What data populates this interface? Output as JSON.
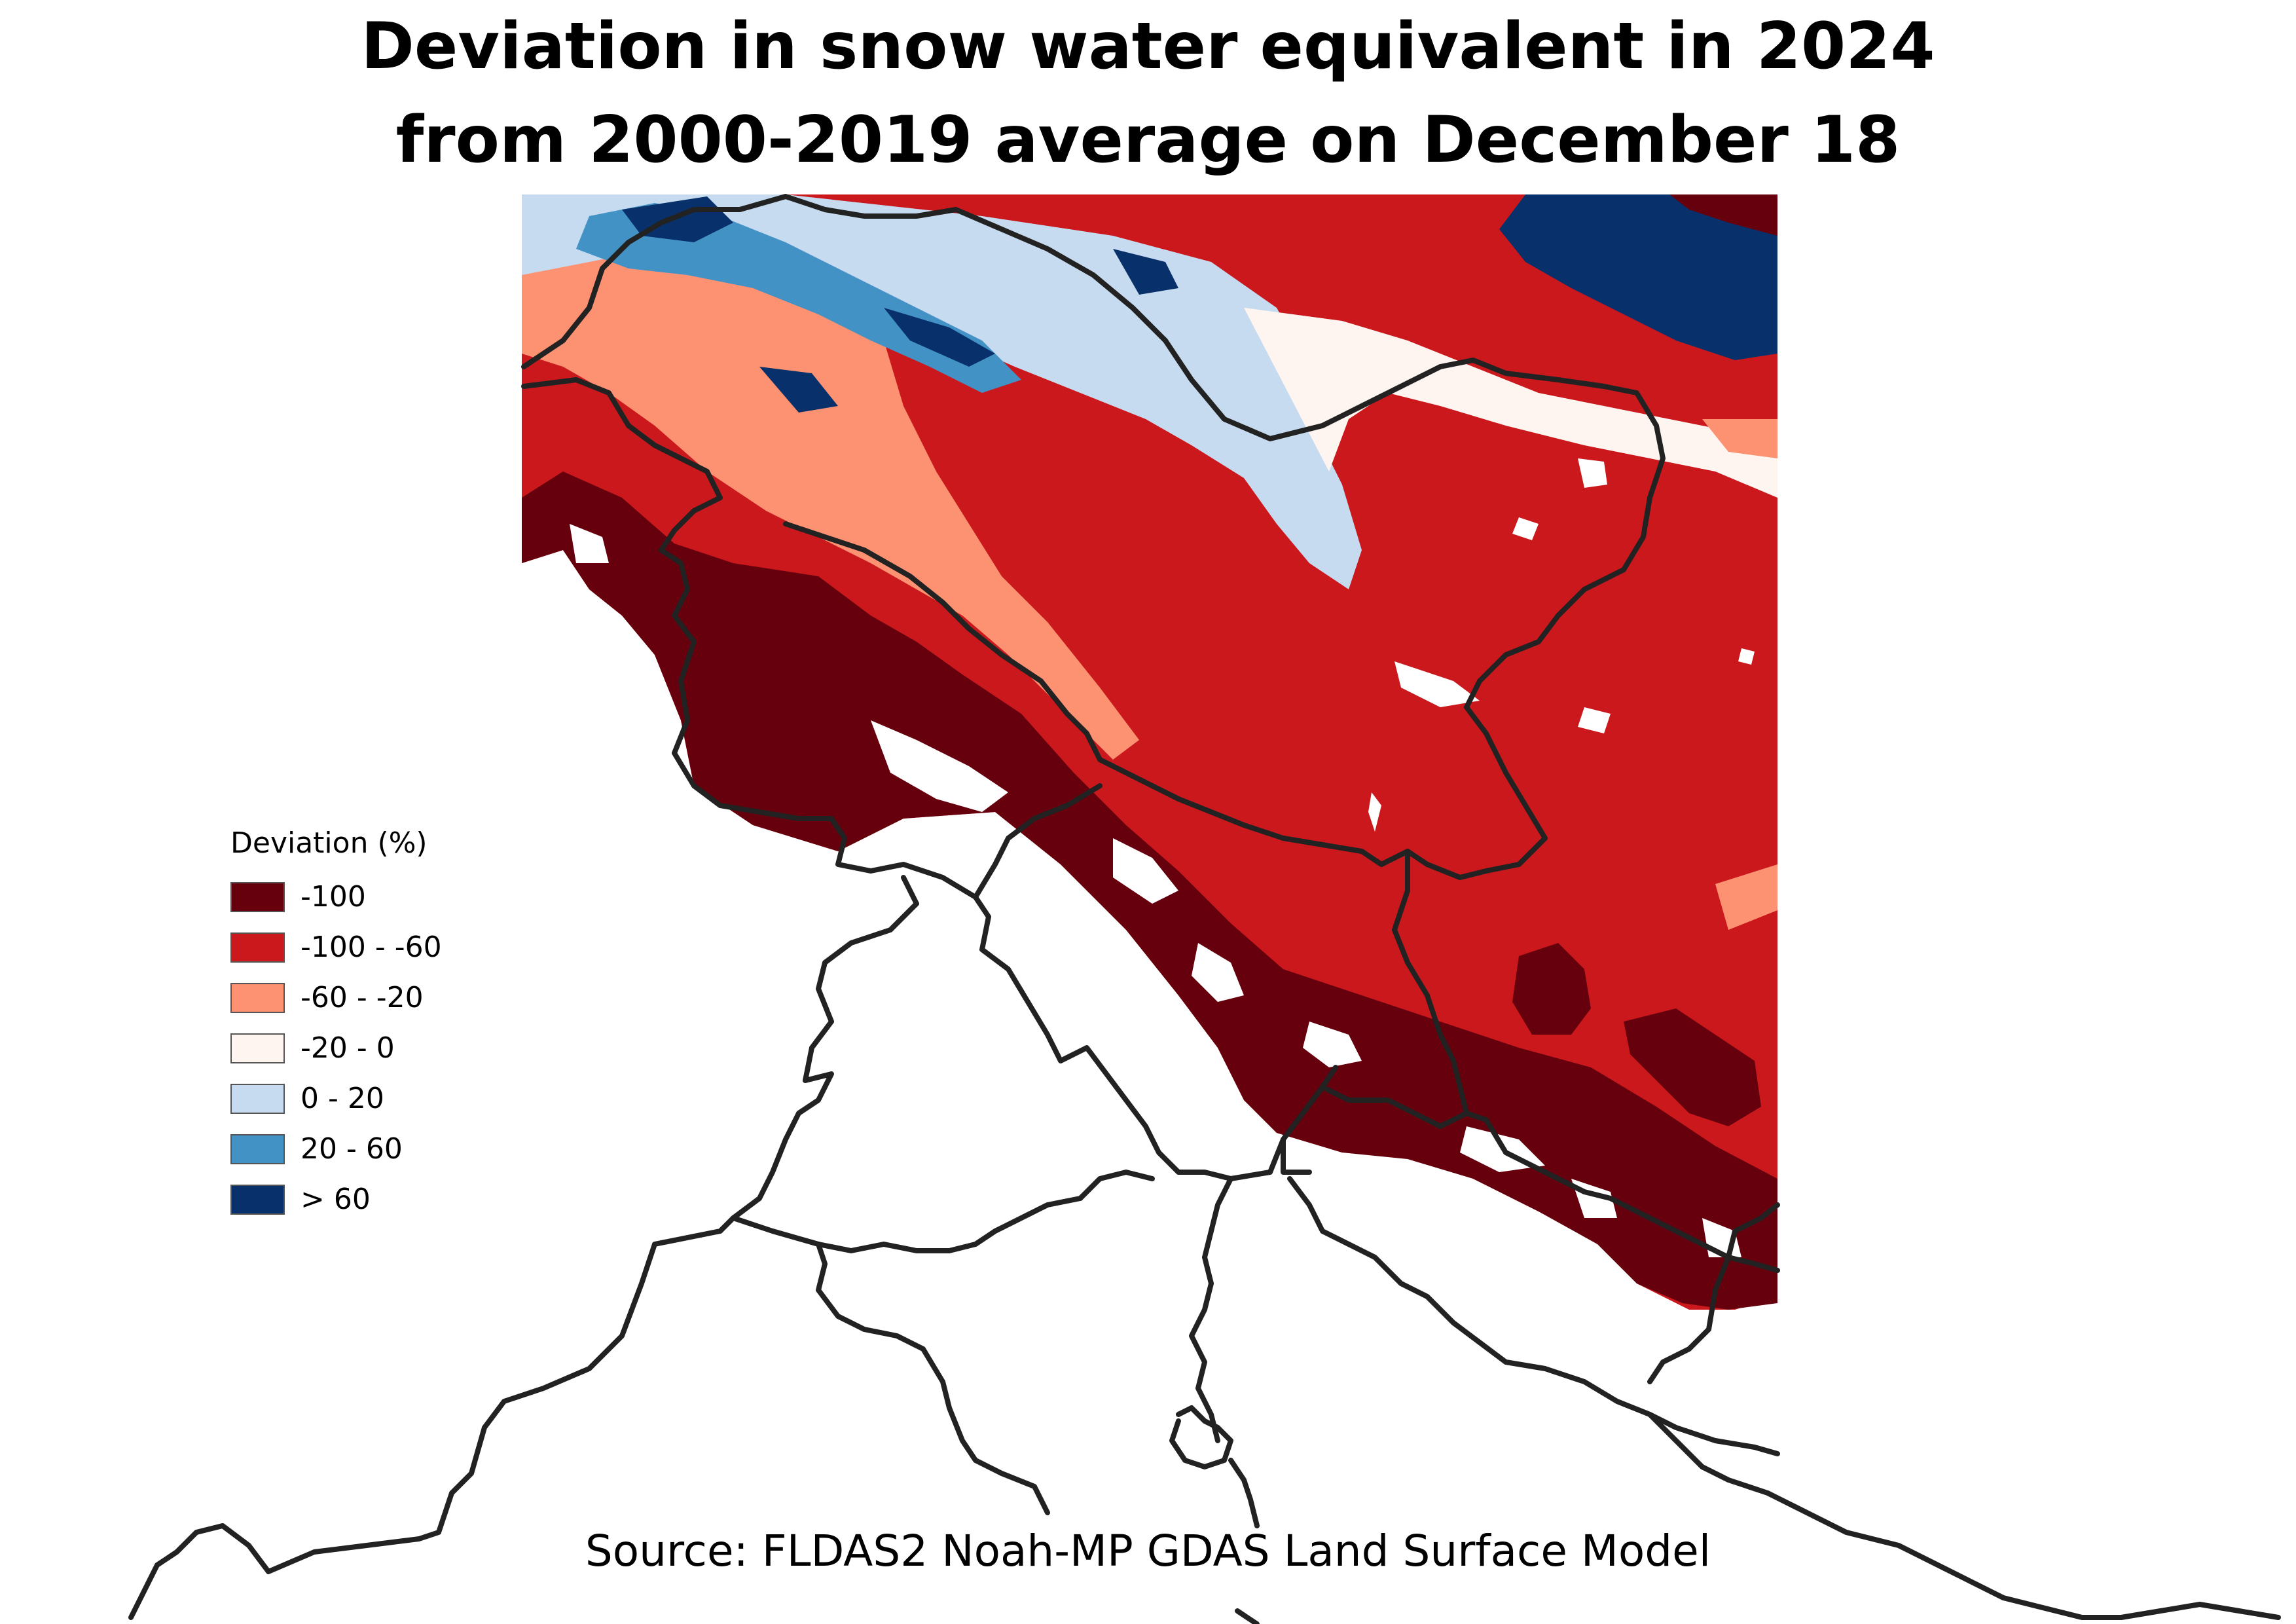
{
  "title": {
    "line1": "Deviation in snow water equivalent in 2024",
    "line2": "from 2000-2019 average on December 18"
  },
  "legend": {
    "title": "Deviation (%)",
    "items": [
      {
        "label": "-100",
        "color": "#67000d"
      },
      {
        "label": "-100 - -60",
        "color": "#cb181d"
      },
      {
        "label": "-60 - -20",
        "color": "#fc9272"
      },
      {
        "label": "-20 - 0",
        "color": "#fff5f0"
      },
      {
        "label": "0 - 20",
        "color": "#c6dbef"
      },
      {
        "label": "20 - 60",
        "color": "#4292c6"
      },
      {
        "label": "> 60",
        "color": "#08306b"
      }
    ]
  },
  "source": "Source: FLDAS2 Noah-MP GDAS Land Surface Model",
  "colors": {
    "border": "#222222",
    "no_snow": "#ffffff"
  }
}
